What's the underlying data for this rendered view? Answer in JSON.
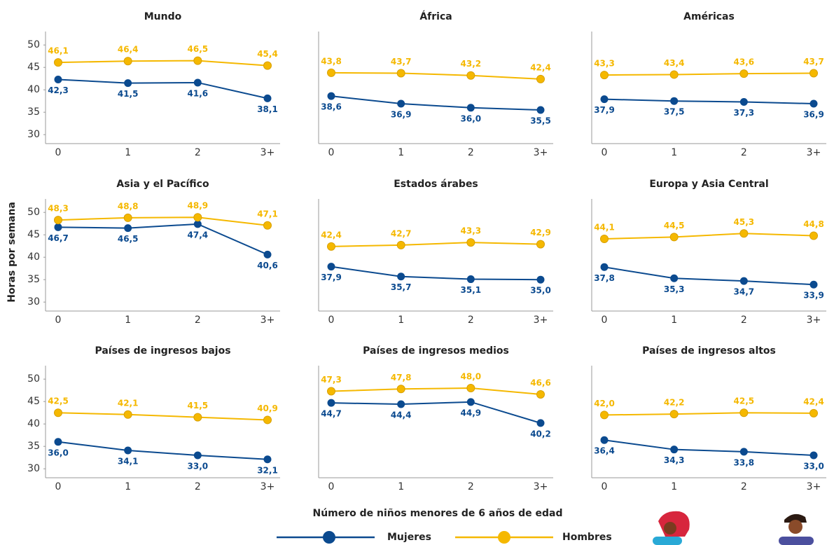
{
  "ylabel": "Horas por semana",
  "xlabel": "Número de niños menores de 6 años de edad",
  "chart_data": [
    {
      "type": "line",
      "title": "Mundo",
      "categories": [
        "0",
        "1",
        "2",
        "3+"
      ],
      "ylim": [
        28,
        53
      ],
      "yticks": [
        30,
        35,
        40,
        45,
        50
      ],
      "series": [
        {
          "name": "Mujeres",
          "color": "#0b4a8f",
          "values": [
            42.3,
            41.5,
            41.6,
            38.1
          ],
          "value_labels": [
            "42,3",
            "41,5",
            "41,6",
            "38,1"
          ]
        },
        {
          "name": "Hombres",
          "color": "#f5b800",
          "values": [
            46.1,
            46.4,
            46.5,
            45.4
          ],
          "value_labels": [
            "46,1",
            "46,4",
            "46,5",
            "45,4"
          ]
        }
      ]
    },
    {
      "type": "line",
      "title": "África",
      "categories": [
        "0",
        "1",
        "2",
        "3+"
      ],
      "ylim": [
        28,
        53
      ],
      "series": [
        {
          "name": "Mujeres",
          "color": "#0b4a8f",
          "values": [
            38.6,
            36.9,
            36.0,
            35.5
          ],
          "value_labels": [
            "38,6",
            "36,9",
            "36,0",
            "35,5"
          ]
        },
        {
          "name": "Hombres",
          "color": "#f5b800",
          "values": [
            43.8,
            43.7,
            43.2,
            42.4
          ],
          "value_labels": [
            "43,8",
            "43,7",
            "43,2",
            "42,4"
          ]
        }
      ]
    },
    {
      "type": "line",
      "title": "Américas",
      "categories": [
        "0",
        "1",
        "2",
        "3+"
      ],
      "ylim": [
        28,
        53
      ],
      "series": [
        {
          "name": "Mujeres",
          "color": "#0b4a8f",
          "values": [
            37.9,
            37.5,
            37.3,
            36.9
          ],
          "value_labels": [
            "37,9",
            "37,5",
            "37,3",
            "36,9"
          ]
        },
        {
          "name": "Hombres",
          "color": "#f5b800",
          "values": [
            43.3,
            43.4,
            43.6,
            43.7
          ],
          "value_labels": [
            "43,3",
            "43,4",
            "43,6",
            "43,7"
          ]
        }
      ]
    },
    {
      "type": "line",
      "title": "Asia y el Pacífico",
      "categories": [
        "0",
        "1",
        "2",
        "3+"
      ],
      "ylim": [
        28,
        53
      ],
      "yticks": [
        30,
        35,
        40,
        45,
        50
      ],
      "series": [
        {
          "name": "Mujeres",
          "color": "#0b4a8f",
          "values": [
            46.7,
            46.5,
            47.4,
            40.6
          ],
          "value_labels": [
            "46,7",
            "46,5",
            "47,4",
            "40,6"
          ]
        },
        {
          "name": "Hombres",
          "color": "#f5b800",
          "values": [
            48.3,
            48.8,
            48.9,
            47.1
          ],
          "value_labels": [
            "48,3",
            "48,8",
            "48,9",
            "47,1"
          ]
        }
      ]
    },
    {
      "type": "line",
      "title": "Estados árabes",
      "categories": [
        "0",
        "1",
        "2",
        "3+"
      ],
      "ylim": [
        28,
        53
      ],
      "series": [
        {
          "name": "Mujeres",
          "color": "#0b4a8f",
          "values": [
            37.9,
            35.7,
            35.1,
            35.0
          ],
          "value_labels": [
            "37,9",
            "35,7",
            "35,1",
            "35,0"
          ]
        },
        {
          "name": "Hombres",
          "color": "#f5b800",
          "values": [
            42.4,
            42.7,
            43.3,
            42.9
          ],
          "value_labels": [
            "42,4",
            "42,7",
            "43,3",
            "42,9"
          ]
        }
      ]
    },
    {
      "type": "line",
      "title": "Europa y Asia Central",
      "categories": [
        "0",
        "1",
        "2",
        "3+"
      ],
      "ylim": [
        28,
        53
      ],
      "series": [
        {
          "name": "Mujeres",
          "color": "#0b4a8f",
          "values": [
            37.8,
            35.3,
            34.7,
            33.9
          ],
          "value_labels": [
            "37,8",
            "35,3",
            "34,7",
            "33,9"
          ]
        },
        {
          "name": "Hombres",
          "color": "#f5b800",
          "values": [
            44.1,
            44.5,
            45.3,
            44.8
          ],
          "value_labels": [
            "44,1",
            "44,5",
            "45,3",
            "44,8"
          ]
        }
      ]
    },
    {
      "type": "line",
      "title": "Países de ingresos bajos",
      "categories": [
        "0",
        "1",
        "2",
        "3+"
      ],
      "ylim": [
        28,
        53
      ],
      "yticks": [
        30,
        35,
        40,
        45,
        50
      ],
      "series": [
        {
          "name": "Mujeres",
          "color": "#0b4a8f",
          "values": [
            36.0,
            34.1,
            33.0,
            32.1
          ],
          "value_labels": [
            "36,0",
            "34,1",
            "33,0",
            "32,1"
          ]
        },
        {
          "name": "Hombres",
          "color": "#f5b800",
          "values": [
            42.5,
            42.1,
            41.5,
            40.9
          ],
          "value_labels": [
            "42,5",
            "42,1",
            "41,5",
            "40,9"
          ]
        }
      ]
    },
    {
      "type": "line",
      "title": "Países de ingresos medios",
      "categories": [
        "0",
        "1",
        "2",
        "3+"
      ],
      "ylim": [
        28,
        53
      ],
      "series": [
        {
          "name": "Mujeres",
          "color": "#0b4a8f",
          "values": [
            44.7,
            44.4,
            44.9,
            40.2
          ],
          "value_labels": [
            "44,7",
            "44,4",
            "44,9",
            "40,2"
          ]
        },
        {
          "name": "Hombres",
          "color": "#f5b800",
          "values": [
            47.3,
            47.8,
            48.0,
            46.6
          ],
          "value_labels": [
            "47,3",
            "47,8",
            "48,0",
            "46,6"
          ]
        }
      ]
    },
    {
      "type": "line",
      "title": "Países de ingresos altos",
      "categories": [
        "0",
        "1",
        "2",
        "3+"
      ],
      "ylim": [
        28,
        53
      ],
      "series": [
        {
          "name": "Mujeres",
          "color": "#0b4a8f",
          "values": [
            36.4,
            34.3,
            33.8,
            33.0
          ],
          "value_labels": [
            "36,4",
            "34,3",
            "33,8",
            "33,0"
          ]
        },
        {
          "name": "Hombres",
          "color": "#f5b800",
          "values": [
            42.0,
            42.2,
            42.5,
            42.4
          ],
          "value_labels": [
            "42,0",
            "42,2",
            "42,5",
            "42,4"
          ]
        }
      ]
    }
  ]
}
